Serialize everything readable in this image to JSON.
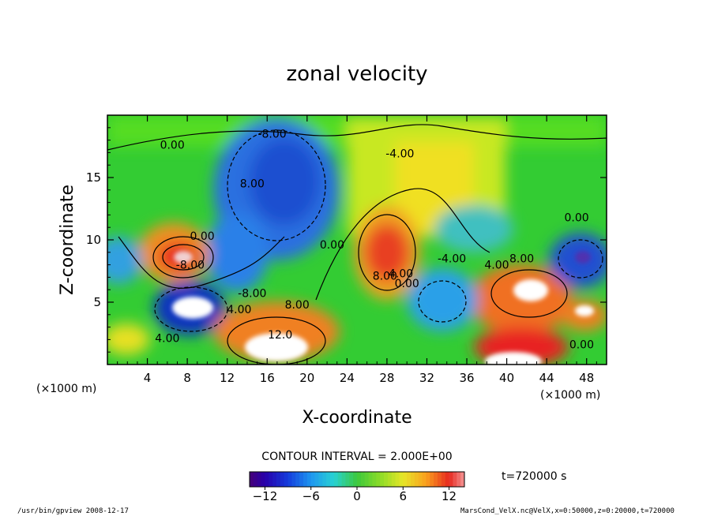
{
  "chart_data": {
    "type": "heatmap",
    "title": "zonal velocity",
    "xlabel": "X-coordinate",
    "ylabel": "Z-coordinate",
    "x_unit": "(×1000 m)",
    "y_unit": "(×1000 m)",
    "xlim": [
      0,
      50
    ],
    "ylim": [
      0,
      20
    ],
    "x_ticks": [
      4,
      8,
      12,
      16,
      20,
      24,
      28,
      32,
      36,
      40,
      44,
      48
    ],
    "y_ticks": [
      5,
      10,
      15
    ],
    "contour_interval_text": "CONTOUR INTERVAL = 2.000E+00",
    "time_text": "t=720000 s",
    "colorbar": {
      "range": [
        -14,
        14
      ],
      "ticks": [
        -12,
        -6,
        0,
        6,
        12
      ],
      "tick_labels": [
        "−12",
        "−6",
        "0",
        "6",
        "12"
      ]
    },
    "contour_labels": [
      {
        "text": "0.00",
        "x": 6.5,
        "y": 17.3
      },
      {
        "text": "-8.00",
        "x": 16.5,
        "y": 18.2
      },
      {
        "text": "8.00",
        "x": 14.5,
        "y": 14.2
      },
      {
        "text": "-4.00",
        "x": 29.3,
        "y": 16.6
      },
      {
        "text": "0.00",
        "x": 9.5,
        "y": 10.0
      },
      {
        "text": "0.00",
        "x": 22.5,
        "y": 9.3
      },
      {
        "text": "8.00",
        "x": 27.8,
        "y": 6.8
      },
      {
        "text": "4.00",
        "x": 29.4,
        "y": 7.0
      },
      {
        "text": "0.00",
        "x": 30.0,
        "y": 6.2
      },
      {
        "text": "-4.00",
        "x": 34.5,
        "y": 8.2
      },
      {
        "text": "4.00",
        "x": 39.0,
        "y": 7.7
      },
      {
        "text": "8.00",
        "x": 41.5,
        "y": 8.2
      },
      {
        "text": "0.00",
        "x": 47.0,
        "y": 11.5
      },
      {
        "text": "-8.00",
        "x": 8.3,
        "y": 7.7
      },
      {
        "text": "-8.00",
        "x": 14.5,
        "y": 5.4
      },
      {
        "text": "4.00",
        "x": 13.2,
        "y": 4.1
      },
      {
        "text": "8.00",
        "x": 19.0,
        "y": 4.5
      },
      {
        "text": "12.0",
        "x": 17.3,
        "y": 2.1
      },
      {
        "text": "4.00",
        "x": 6.0,
        "y": 1.8
      },
      {
        "text": "0.00",
        "x": 47.5,
        "y": 1.3
      }
    ],
    "features": [
      {
        "kind": "max",
        "x": 7.8,
        "y": 8.7,
        "value": 14
      },
      {
        "kind": "max",
        "x": 28.0,
        "y": 9.0,
        "value": 10
      },
      {
        "kind": "max",
        "x": 41.8,
        "y": 5.8,
        "value": 14
      },
      {
        "kind": "max",
        "x": 17.0,
        "y": 2.5,
        "value": 14
      },
      {
        "kind": "max",
        "x": 42.0,
        "y": 1.2,
        "value": 14
      },
      {
        "kind": "max",
        "x": 47.5,
        "y": 4.5,
        "value": 12
      },
      {
        "kind": "min",
        "x": 18.0,
        "y": 15.0,
        "value": -10
      },
      {
        "kind": "min",
        "x": 9.0,
        "y": 5.0,
        "value": -14
      },
      {
        "kind": "min",
        "x": 47.0,
        "y": 8.8,
        "value": -10
      },
      {
        "kind": "min",
        "x": 33.0,
        "y": 5.5,
        "value": -8
      }
    ]
  },
  "footer": {
    "left": "/usr/bin/gpview  2008-12-17",
    "right": "MarsCond_VelX.nc@VelX,x=0:50000,z=0:20000,t=720000"
  }
}
